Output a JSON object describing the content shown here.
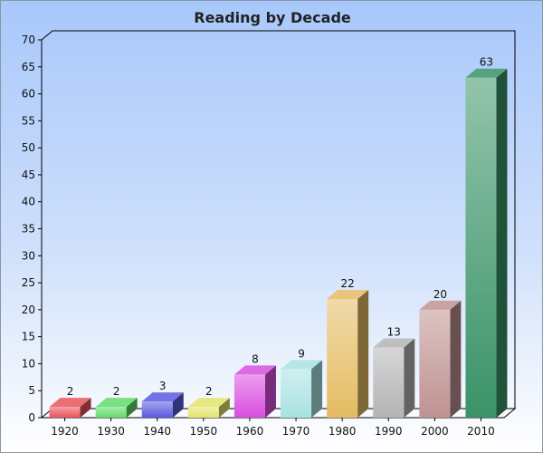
{
  "chart_data": {
    "type": "bar",
    "title": "Reading by Decade",
    "xlabel": "",
    "ylabel": "",
    "categories": [
      "1920",
      "1930",
      "1940",
      "1950",
      "1960",
      "1970",
      "1980",
      "1990",
      "2000",
      "2010"
    ],
    "values": [
      2,
      2,
      3,
      2,
      8,
      9,
      22,
      13,
      20,
      63
    ],
    "data_labels": [
      "2",
      "2",
      "3",
      "2",
      "8",
      "9",
      "22",
      "13",
      "20",
      "63"
    ],
    "ylim": [
      0,
      70
    ],
    "yticks": [
      "0",
      "5",
      "10",
      "15",
      "20",
      "25",
      "30",
      "35",
      "40",
      "45",
      "50",
      "55",
      "60",
      "65",
      "70"
    ],
    "grid": false,
    "legend": "none",
    "bar_colors": [
      "#e8545a",
      "#5fdb6a",
      "#5a5ae0",
      "#e4e46a",
      "#d84ee0",
      "#a8e2e2",
      "#e4bb62",
      "#b4b4b4",
      "#bf9292",
      "#3a9368"
    ],
    "background": "#a8c8fb"
  }
}
